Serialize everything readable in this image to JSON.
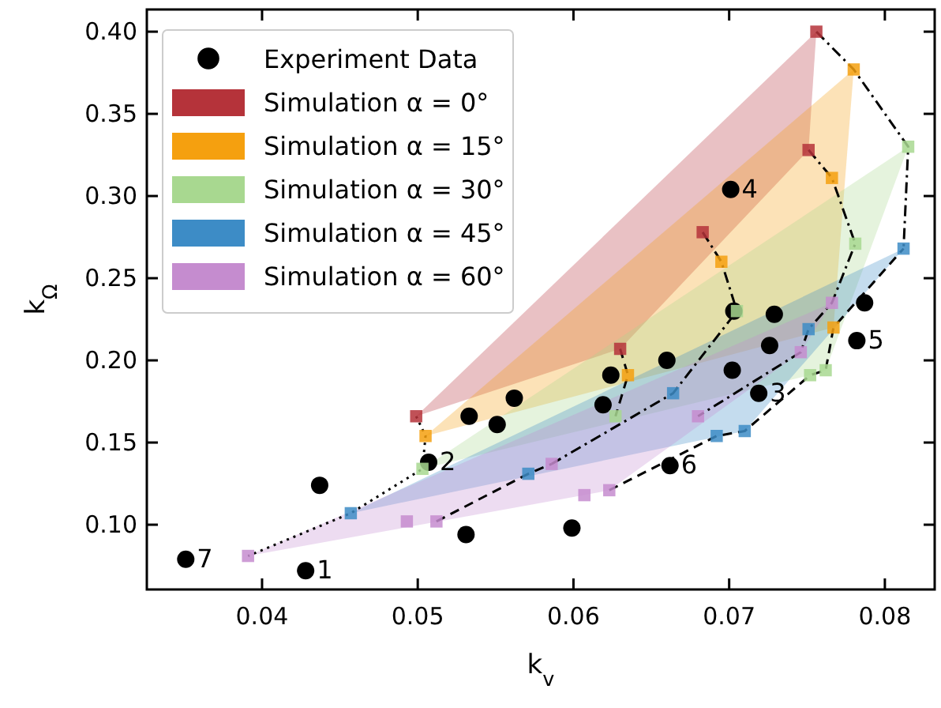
{
  "chart_data": {
    "type": "scatter",
    "xlabel": "k$_{v}$",
    "ylabel": "k$_{Ω}$",
    "xlim": [
      0.0326,
      0.0832
    ],
    "ylim": [
      0.0606,
      0.4135
    ],
    "xticks": [
      {
        "value": 0.04,
        "label": "0.04"
      },
      {
        "value": 0.05,
        "label": "0.05"
      },
      {
        "value": 0.06,
        "label": "0.06"
      },
      {
        "value": 0.07,
        "label": "0.07"
      },
      {
        "value": 0.08,
        "label": "0.08"
      }
    ],
    "yticks": [
      {
        "value": 0.1,
        "label": "0.10"
      },
      {
        "value": 0.15,
        "label": "0.15"
      },
      {
        "value": 0.2,
        "label": "0.20"
      },
      {
        "value": 0.25,
        "label": "0.25"
      },
      {
        "value": 0.3,
        "label": "0.30"
      },
      {
        "value": 0.35,
        "label": "0.35"
      },
      {
        "value": 0.4,
        "label": "0.40"
      }
    ],
    "legend": "top left",
    "grid": false,
    "series": [
      {
        "name": "Simulation α = 0°",
        "type": "scatter",
        "marker": "square",
        "color": "#b5333a",
        "x": [
          0.0499,
          0.063,
          0.0683,
          0.0751,
          0.0756
        ],
        "values": [
          0.166,
          0.207,
          0.278,
          0.328,
          0.4
        ]
      },
      {
        "name": "Simulation α = 15°",
        "type": "scatter",
        "marker": "square",
        "color": "#f5a00f",
        "x": [
          0.0505,
          0.0635,
          0.0695,
          0.0766,
          0.078,
          0.0767
        ],
        "values": [
          0.154,
          0.191,
          0.26,
          0.311,
          0.377,
          0.22
        ]
      },
      {
        "name": "Simulation α = 30°",
        "type": "scatter",
        "marker": "square",
        "color": "#a8d890",
        "x": [
          0.0503,
          0.0627,
          0.0705,
          0.0781,
          0.0815,
          0.0752,
          0.0762
        ],
        "values": [
          0.134,
          0.166,
          0.23,
          0.271,
          0.33,
          0.191,
          0.194
        ]
      },
      {
        "name": "Simulation α = 45°",
        "type": "scatter",
        "marker": "square",
        "color": "#3d8cc6",
        "x": [
          0.0457,
          0.0571,
          0.0664,
          0.0751,
          0.0812,
          0.0692,
          0.071
        ],
        "values": [
          0.107,
          0.131,
          0.18,
          0.219,
          0.268,
          0.154,
          0.157
        ]
      },
      {
        "name": "Simulation α = 60°",
        "type": "scatter",
        "marker": "square",
        "color": "#c58ccf",
        "x": [
          0.0391,
          0.0493,
          0.0512,
          0.0586,
          0.068,
          0.0746,
          0.0607,
          0.0623,
          0.0766
        ],
        "values": [
          0.081,
          0.102,
          0.102,
          0.137,
          0.166,
          0.205,
          0.118,
          0.121,
          0.235
        ]
      },
      {
        "type": "line",
        "line_style": "dotted",
        "color": "#000000",
        "x": [
          0.0499,
          0.0505,
          0.0503,
          0.0457,
          0.0391
        ],
        "values": [
          0.166,
          0.154,
          0.134,
          0.107,
          0.081
        ]
      },
      {
        "type": "line",
        "line_style": "dashed",
        "color": "#000000",
        "x": [
          0.063,
          0.0635,
          0.0627
        ],
        "values": [
          0.207,
          0.191,
          0.166
        ]
      },
      {
        "type": "line",
        "line_style": "dashdot",
        "color": "#000000",
        "x": [
          0.0683,
          0.0695,
          0.0705,
          0.0664,
          0.0586
        ],
        "values": [
          0.278,
          0.26,
          0.23,
          0.18,
          0.137
        ]
      },
      {
        "type": "line",
        "line_style": "dashdot",
        "color": "#000000",
        "x": [
          0.0751,
          0.0766,
          0.0781,
          0.0766,
          0.0751,
          0.0746,
          0.068
        ],
        "values": [
          0.328,
          0.311,
          0.271,
          0.235,
          0.219,
          0.205,
          0.166
        ]
      },
      {
        "type": "line",
        "line_style": "dashdot",
        "color": "#000000",
        "x": [
          0.0756,
          0.078,
          0.0815,
          0.0812
        ],
        "values": [
          0.4,
          0.377,
          0.33,
          0.268
        ]
      },
      {
        "type": "line",
        "line_style": "dashed",
        "color": "#000000",
        "x": [
          0.0623,
          0.0692,
          0.071,
          0.0752,
          0.0762,
          0.0767,
          0.0812
        ],
        "values": [
          0.121,
          0.154,
          0.157,
          0.191,
          0.194,
          0.22,
          0.268
        ]
      },
      {
        "type": "line",
        "line_style": "dashed",
        "color": "#000000",
        "x": [
          0.0512,
          0.0571,
          0.0586
        ],
        "values": [
          0.102,
          0.131,
          0.137
        ]
      },
      {
        "name": "Experiment Data",
        "marker": "circle",
        "color": "#000000",
        "x": [
          0.0351,
          0.0428,
          0.0437,
          0.0507,
          0.0533,
          0.0551,
          0.0562,
          0.0531,
          0.0599,
          0.0662,
          0.0624,
          0.0619,
          0.066,
          0.0702,
          0.0703,
          0.0729,
          0.0726,
          0.0719,
          0.0787,
          0.0782,
          0.0701
        ],
        "values": [
          0.079,
          0.072,
          0.124,
          0.138,
          0.166,
          0.161,
          0.177,
          0.094,
          0.098,
          0.136,
          0.191,
          0.173,
          0.2,
          0.194,
          0.23,
          0.228,
          0.209,
          0.18,
          0.235,
          0.212,
          0.304
        ]
      }
    ],
    "annotations": [
      {
        "text": "1",
        "x": 0.0428,
        "y": 0.0721
      },
      {
        "text": "2",
        "x": 0.0507,
        "y": 0.138
      },
      {
        "text": "3",
        "x": 0.0719,
        "y": 0.18
      },
      {
        "text": "4",
        "x": 0.0701,
        "y": 0.304
      },
      {
        "text": "5",
        "x": 0.0782,
        "y": 0.212
      },
      {
        "text": "6",
        "x": 0.0662,
        "y": 0.136
      },
      {
        "text": "7",
        "x": 0.0351,
        "y": 0.079
      }
    ]
  }
}
